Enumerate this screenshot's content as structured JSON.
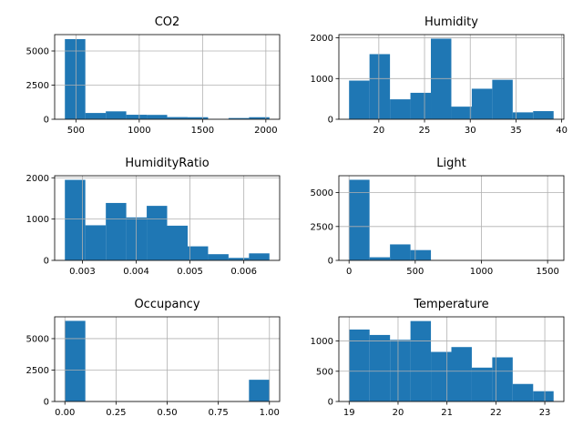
{
  "chart_data": [
    {
      "type": "histogram",
      "title": "CO2",
      "color": "#1f77b4",
      "grid": true,
      "bins": [
        412.75,
        574.33,
        735.9,
        897.48,
        1059.05,
        1220.63,
        1382.2,
        1543.78,
        1705.35,
        1866.93,
        2028.5
      ],
      "values": [
        5870,
        460,
        580,
        330,
        320,
        160,
        150,
        30,
        90,
        150
      ],
      "xlim": [
        332,
        2109
      ],
      "xticks": [
        500,
        1000,
        1500,
        2000
      ],
      "ylim": [
        0,
        6200
      ],
      "yticks": [
        0,
        2500,
        5000
      ]
    },
    {
      "type": "histogram",
      "title": "Humidity",
      "color": "#1f77b4",
      "grid": true,
      "bins": [
        16.745,
        18.982,
        21.22,
        23.457,
        25.694,
        27.931,
        30.169,
        32.406,
        34.643,
        36.88,
        39.118
      ],
      "values": [
        950,
        1600,
        490,
        650,
        1980,
        310,
        750,
        970,
        170,
        200
      ],
      "xlim": [
        15.63,
        40.24
      ],
      "xticks": [
        20,
        25,
        30,
        35,
        40
      ],
      "ylim": [
        0,
        2080
      ],
      "yticks": [
        0,
        1000,
        2000
      ]
    },
    {
      "type": "histogram",
      "title": "HumidityRatio",
      "color": "#1f77b4",
      "grid": true,
      "bins": [
        0.002674,
        0.003054,
        0.003435,
        0.003815,
        0.004195,
        0.004575,
        0.004956,
        0.005336,
        0.005716,
        0.006096,
        0.006476
      ],
      "values": [
        1950,
        850,
        1390,
        1040,
        1320,
        840,
        340,
        150,
        60,
        170
      ],
      "xlim": [
        0.002484,
        0.006666
      ],
      "xticks": [
        0.003,
        0.004,
        0.005,
        0.006
      ],
      "ylim": [
        0,
        2050
      ],
      "yticks": [
        0,
        1000,
        2000
      ]
    },
    {
      "type": "histogram",
      "title": "Light",
      "color": "#1f77b4",
      "grid": true,
      "bins": [
        0,
        154.63,
        309.27,
        463.9,
        618.53,
        773.17,
        927.8,
        1082.43,
        1237.07,
        1391.7,
        1546.33
      ],
      "values": [
        5950,
        230,
        1180,
        760,
        10,
        0,
        0,
        0,
        0,
        3
      ],
      "xlim": [
        -77,
        1623
      ],
      "xticks": [
        0,
        500,
        1000,
        1500
      ],
      "ylim": [
        0,
        6250
      ],
      "yticks": [
        0,
        2500,
        5000
      ]
    },
    {
      "type": "histogram",
      "title": "Occupancy",
      "color": "#1f77b4",
      "grid": true,
      "bins": [
        0,
        0.1,
        0.2,
        0.3,
        0.4,
        0.5,
        0.6,
        0.7,
        0.8,
        0.9,
        1
      ],
      "values": [
        6414,
        0,
        0,
        0,
        0,
        0,
        0,
        0,
        0,
        1729
      ],
      "xlim": [
        -0.05,
        1.05
      ],
      "xticks": [
        {
          "value": 0,
          "label": "0.00"
        },
        {
          "value": 0.25,
          "label": "0.25"
        },
        {
          "value": 0.5,
          "label": "0.50"
        },
        {
          "value": 0.75,
          "label": "0.75"
        },
        {
          "value": 1,
          "label": "1.00"
        }
      ],
      "ylim": [
        0,
        6735
      ],
      "yticks": [
        0,
        2500,
        5000
      ]
    },
    {
      "type": "histogram",
      "title": "Temperature",
      "color": "#1f77b4",
      "grid": true,
      "bins": [
        19,
        19.418,
        19.836,
        20.254,
        20.672,
        21.09,
        21.508,
        21.926,
        22.344,
        22.762,
        23.18
      ],
      "values": [
        1190,
        1100,
        1020,
        1330,
        820,
        900,
        560,
        730,
        290,
        170
      ],
      "xlim": [
        18.79,
        23.39
      ],
      "xticks": [
        19,
        20,
        21,
        22,
        23
      ],
      "ylim": [
        0,
        1400
      ],
      "yticks": [
        0,
        500,
        1000
      ]
    }
  ]
}
